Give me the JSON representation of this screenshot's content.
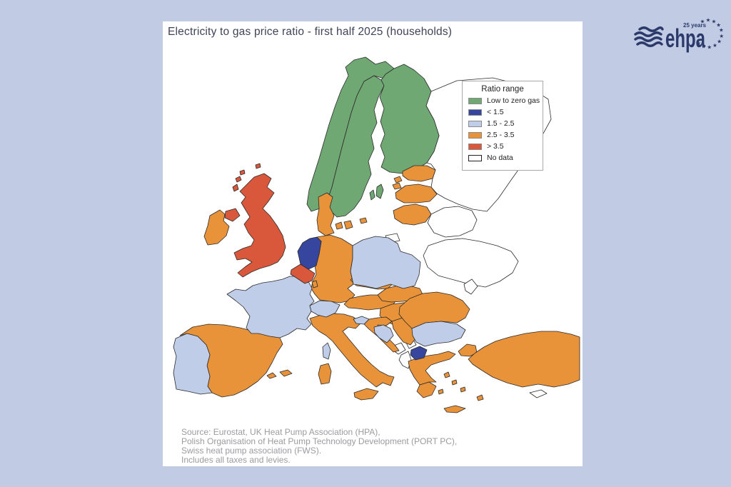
{
  "chart_data": {
    "type": "choropleth",
    "region": "Europe",
    "title": "Electricity to gas price ratio - first half 2025 (households)",
    "legend_title": "Ratio range",
    "legend_position": "upper right",
    "ranges": [
      {
        "key": "low_to_zero_gas",
        "label": "Low to zero gas",
        "color": "#70a873"
      },
      {
        "key": "lt_1_5",
        "label": "< 1.5",
        "color": "#36469e"
      },
      {
        "key": "r1_5_2_5",
        "label": "1.5 - 2.5",
        "color": "#bfcde8"
      },
      {
        "key": "r2_5_3_5",
        "label": "2.5 - 3.5",
        "color": "#e8923a"
      },
      {
        "key": "gt_3_5",
        "label": "> 3.5",
        "color": "#d9573b"
      },
      {
        "key": "no_data",
        "label": "No data",
        "color": "#ffffff"
      }
    ],
    "countries": {
      "Norway": "low_to_zero_gas",
      "Sweden": "low_to_zero_gas",
      "Finland": "low_to_zero_gas",
      "Netherlands": "lt_1_5",
      "North Macedonia": "lt_1_5",
      "France": "r1_5_2_5",
      "Portugal": "r1_5_2_5",
      "Poland": "r1_5_2_5",
      "Switzerland": "r1_5_2_5",
      "Slovenia": "r1_5_2_5",
      "Bosnia and Herzegovina": "r1_5_2_5",
      "Bulgaria": "r1_5_2_5",
      "Ireland": "r2_5_3_5",
      "Spain": "r2_5_3_5",
      "Germany": "r2_5_3_5",
      "Luxembourg": "r2_5_3_5",
      "Denmark": "r2_5_3_5",
      "Czechia": "r2_5_3_5",
      "Austria": "r2_5_3_5",
      "Slovakia": "r2_5_3_5",
      "Hungary": "r2_5_3_5",
      "Croatia": "r2_5_3_5",
      "Romania": "r2_5_3_5",
      "Serbia": "r2_5_3_5",
      "Greece": "r2_5_3_5",
      "Italy": "r2_5_3_5",
      "Turkey": "r2_5_3_5",
      "Estonia": "r2_5_3_5",
      "Latvia": "r2_5_3_5",
      "Lithuania": "r2_5_3_5",
      "United Kingdom": "gt_3_5",
      "Belgium": "gt_3_5",
      "Russia": "no_data",
      "Belarus": "no_data",
      "Ukraine": "no_data",
      "Moldova": "no_data",
      "Montenegro": "no_data",
      "Kosovo": "no_data",
      "Albania": "no_data",
      "Cyprus": "no_data"
    }
  },
  "footnote": {
    "lines": [
      "Source: Eurostat, UK Heat Pump Association (HPA),",
      "Polish Organisation of Heat Pump Technology Development (PORT PC),",
      "Swiss heat pump association (FWS).",
      "Includes all taxes and levies."
    ]
  },
  "logo": {
    "brand": "ehpa",
    "anniversary": "25 years"
  }
}
